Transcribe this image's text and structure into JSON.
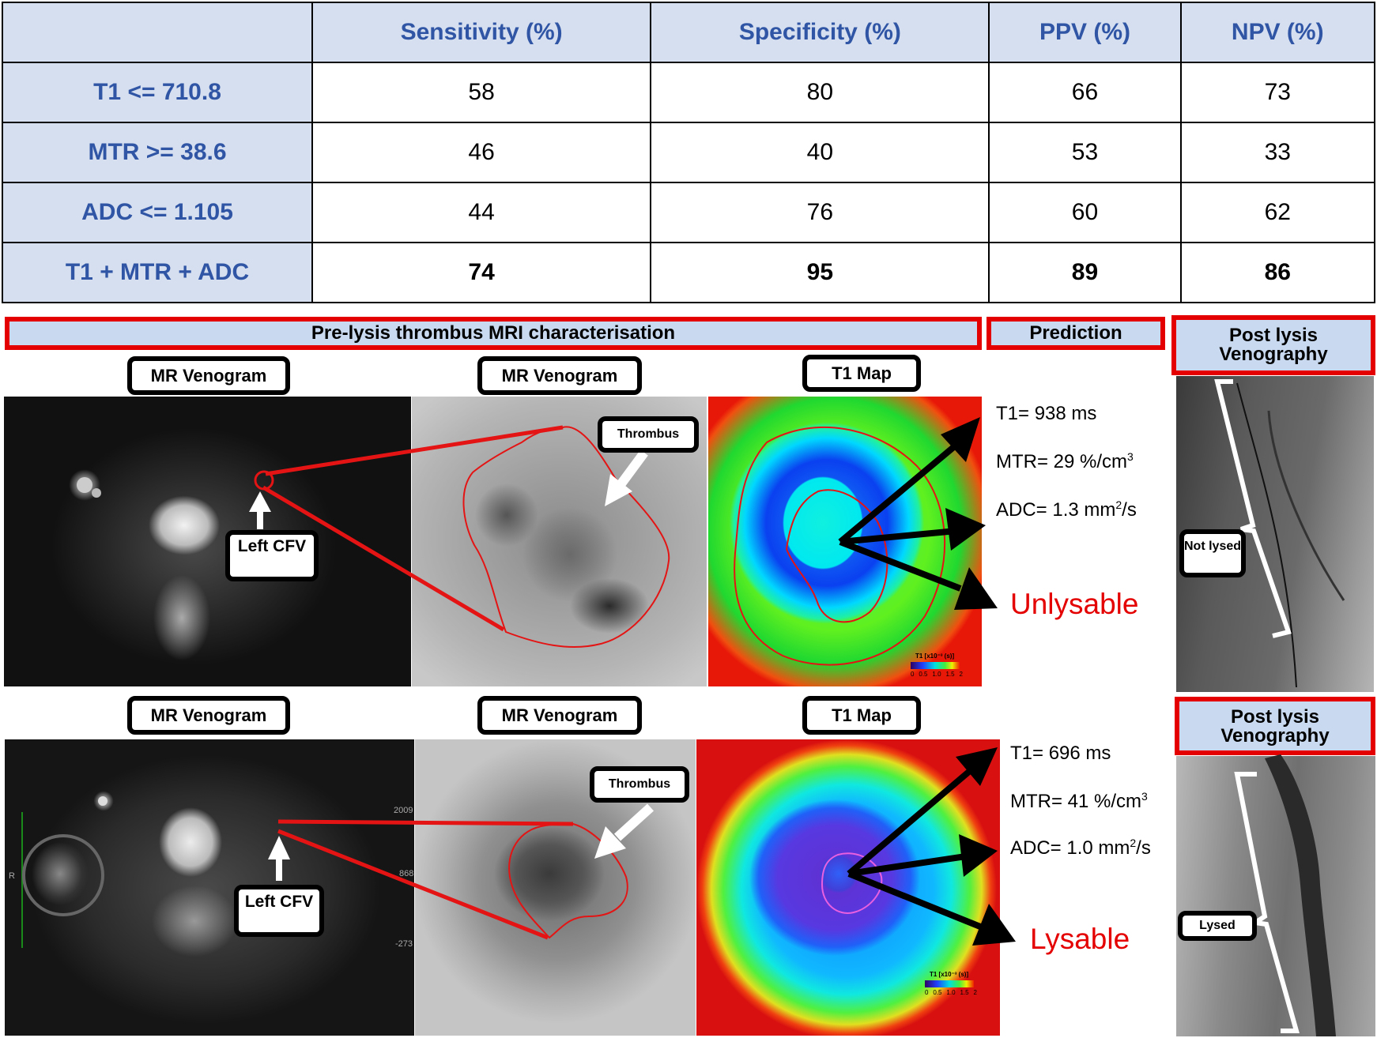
{
  "table": {
    "headers": [
      "",
      "Sensitivity (%)",
      "Specificity (%)",
      "PPV (%)",
      "NPV (%)"
    ],
    "rows": [
      {
        "label": "T1 <= 710.8",
        "values": [
          "58",
          "80",
          "66",
          "73"
        ]
      },
      {
        "label": "MTR >= 38.6",
        "values": [
          "46",
          "40",
          "53",
          "33"
        ]
      },
      {
        "label": "ADC <= 1.105",
        "values": [
          "44",
          "76",
          "60",
          "62"
        ]
      },
      {
        "label": "T1 + MTR + ADC",
        "values": [
          "74",
          "95",
          "89",
          "86"
        ]
      }
    ]
  },
  "banners": {
    "pre_lysis": "Pre-lysis thrombus MRI characterisation",
    "prediction": "Prediction",
    "post_lysis_top": "Post lysis Venography",
    "post_lysis_bottom": "Post lysis Venography"
  },
  "top_case": {
    "labels": {
      "mr1": "MR Venogram",
      "mr2": "MR Venogram",
      "t1map": "T1 Map"
    },
    "vessel_label": "Left CFV",
    "thrombus_label": "Thrombus",
    "t1": "T1= 938 ms",
    "mtr": "MTR= 29 %/cm",
    "mtr_sup": "3",
    "adc": "ADC= 1.3 mm",
    "adc_sup": "2",
    "adc_tail": "/s",
    "prediction": "Unlysable",
    "venography_label": "Not lysed",
    "colorbar_title": "T1 [x10⁻³ (s)]",
    "colorbar_ticks": [
      "0",
      "0.5",
      "1.0",
      "1.5",
      "2"
    ]
  },
  "bottom_case": {
    "labels": {
      "mr1": "MR Venogram",
      "mr2": "MR Venogram",
      "t1map": "T1 Map"
    },
    "vessel_label": "Left CFV",
    "thrombus_label": "Thrombus",
    "t1": "T1= 696 ms",
    "mtr": "MTR= 41 %/cm",
    "mtr_sup": "3",
    "adc": "ADC= 1.0 mm",
    "adc_sup": "2",
    "adc_tail": "/s",
    "prediction": "Lysable",
    "venography_label": "Lysed",
    "colorbar_title": "T1 [x10⁻³ (s)]",
    "colorbar_ticks": [
      "0",
      "0.5",
      "1.0",
      "1.5",
      "2"
    ],
    "scan_marks": [
      "2009",
      "868",
      "-273",
      "R"
    ]
  }
}
